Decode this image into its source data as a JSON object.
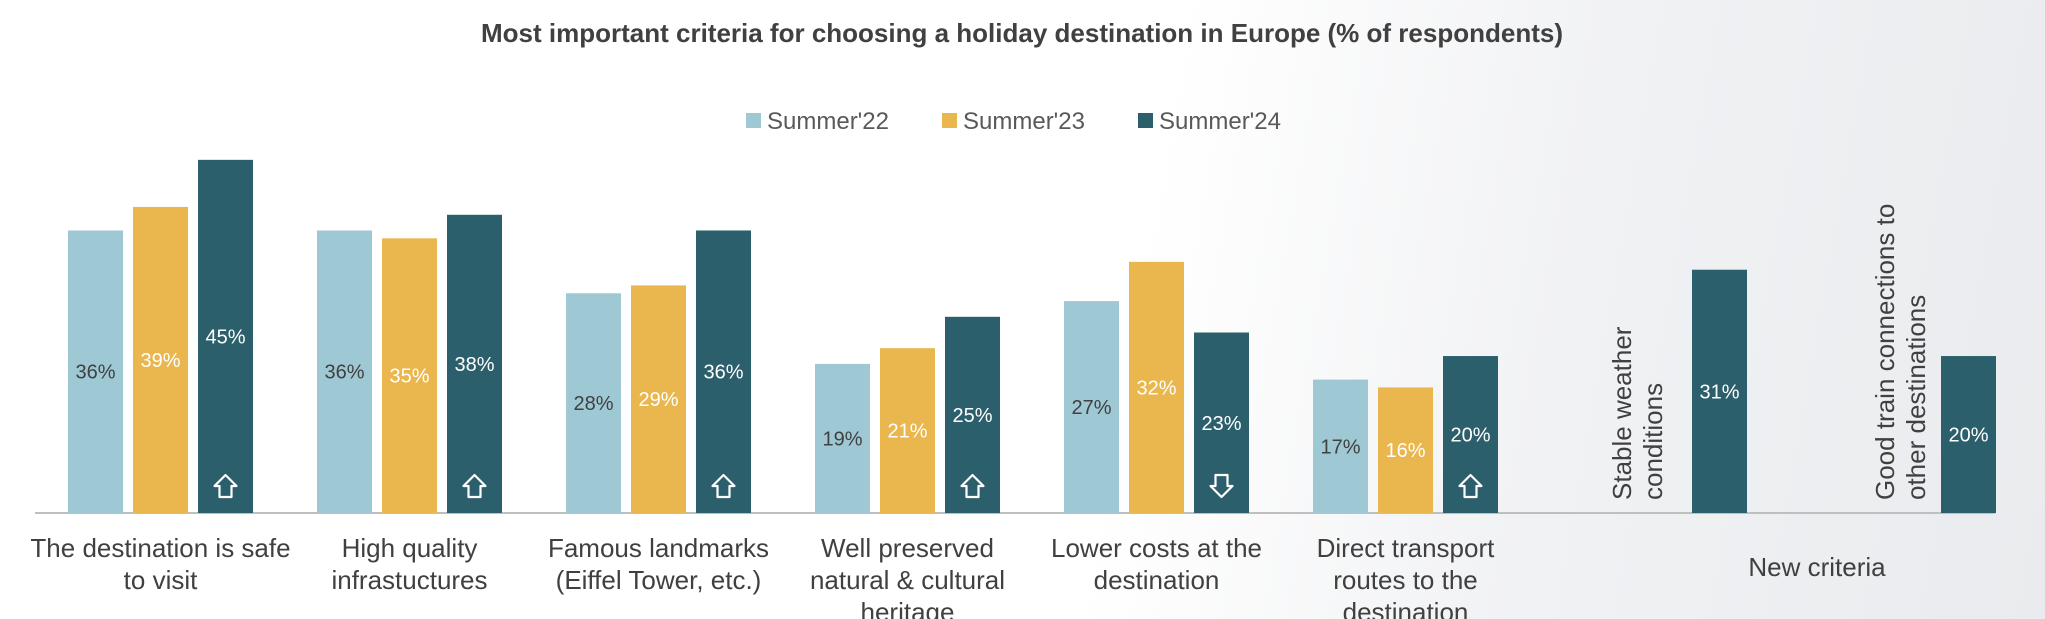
{
  "chart_data": {
    "type": "bar",
    "title": "Most important criteria for choosing a holiday destination in Europe (% of respondents)",
    "series": [
      {
        "name": "Summer'22",
        "color": "#9fc8d5"
      },
      {
        "name": "Summer'23",
        "color": "#eab64e"
      },
      {
        "name": "Summer'24",
        "color": "#2c5f6c"
      }
    ],
    "groups": [
      {
        "category": [
          "The destination is safe",
          "to visit"
        ],
        "values": [
          36,
          39,
          45
        ],
        "labels": [
          "36%",
          "39%",
          "45%"
        ],
        "trend": "up-arrow-icon"
      },
      {
        "category": [
          "High quality",
          "infrastuctures"
        ],
        "values": [
          36,
          35,
          38
        ],
        "labels": [
          "36%",
          "35%",
          "38%"
        ],
        "trend": "up-arrow-icon"
      },
      {
        "category": [
          "Famous landmarks",
          "(Eiffel Tower, etc.)"
        ],
        "values": [
          28,
          29,
          36
        ],
        "labels": [
          "28%",
          "29%",
          "36%"
        ],
        "trend": "up-arrow-icon"
      },
      {
        "category": [
          "Well preserved",
          "natural & cultural",
          "heritage"
        ],
        "values": [
          19,
          21,
          25
        ],
        "labels": [
          "19%",
          "21%",
          "25%"
        ],
        "trend": "up-arrow-icon"
      },
      {
        "category": [
          "Lower costs at the",
          "destination"
        ],
        "values": [
          27,
          32,
          23
        ],
        "labels": [
          "27%",
          "32%",
          "23%"
        ],
        "trend": "down-arrow-icon"
      },
      {
        "category": [
          "Direct transport",
          "routes to the",
          "destination"
        ],
        "values": [
          17,
          16,
          20
        ],
        "labels": [
          "17%",
          "16%",
          "20%"
        ],
        "trend": "up-arrow-icon"
      }
    ],
    "new_criteria": {
      "label": "New criteria",
      "items": [
        {
          "category": [
            "Stable weather",
            "conditions"
          ],
          "value": 31,
          "label": "31%"
        },
        {
          "category": [
            "Good train connections to",
            "other destinations"
          ],
          "value": 20,
          "label": "20%"
        }
      ]
    },
    "ylim": [
      0,
      46
    ]
  }
}
